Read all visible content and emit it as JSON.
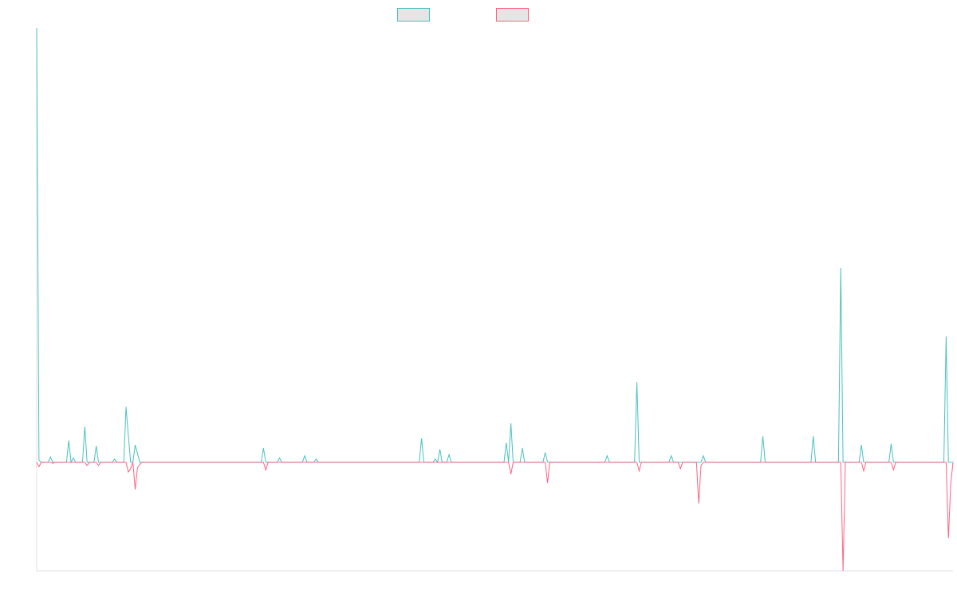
{
  "chart_data": {
    "type": "line",
    "title": "",
    "xlabel": "",
    "ylabel": "",
    "ylim": [
      -100,
      400
    ],
    "grid": false,
    "legend": "top-center",
    "x": [
      0,
      1,
      2,
      3,
      4,
      5,
      6,
      7,
      8,
      9,
      10,
      11,
      12,
      13,
      14,
      15,
      16,
      17,
      18,
      19,
      20,
      21,
      22,
      23,
      24,
      25,
      26,
      27,
      28,
      29,
      30,
      31,
      32,
      33,
      34,
      35,
      36,
      37,
      38,
      39,
      40,
      41,
      42,
      43,
      44,
      45,
      46,
      47,
      48,
      49,
      50,
      51,
      52,
      53,
      54,
      55,
      56,
      57,
      58,
      59,
      60,
      61,
      62,
      63,
      64,
      65,
      66,
      67,
      68,
      69,
      70,
      71,
      72,
      73,
      74,
      75,
      76,
      77,
      78,
      79,
      80,
      81,
      82,
      83,
      84,
      85,
      86,
      87,
      88,
      89,
      90,
      91,
      92,
      93,
      94,
      95,
      96,
      97,
      98,
      99,
      100,
      101,
      102,
      103,
      104,
      105,
      106,
      107,
      108,
      109,
      110,
      111,
      112,
      113,
      114,
      115,
      116,
      117,
      118,
      119,
      120,
      121,
      122,
      123,
      124,
      125,
      126,
      127,
      128,
      129,
      130,
      131,
      132,
      133,
      134,
      135,
      136,
      137,
      138,
      139,
      140,
      141,
      142,
      143,
      144,
      145,
      146,
      147,
      148,
      149,
      150,
      151,
      152,
      153,
      154,
      155,
      156,
      157,
      158,
      159,
      160,
      161,
      162,
      163,
      164,
      165,
      166,
      167,
      168,
      169,
      170,
      171,
      172,
      173,
      174,
      175,
      176,
      177,
      178,
      179,
      180,
      181,
      182,
      183,
      184,
      185,
      186,
      187,
      188,
      189,
      190,
      191,
      192,
      193,
      194,
      195,
      196,
      197,
      198,
      199,
      200,
      201,
      202,
      203,
      204,
      205,
      206,
      207,
      208,
      209,
      210,
      211,
      212,
      213,
      214,
      215,
      216,
      217,
      218,
      219,
      220,
      221,
      222,
      223,
      224,
      225,
      226,
      227,
      228,
      229,
      230,
      231,
      232,
      233,
      234,
      235,
      236,
      237,
      238,
      239,
      240,
      241,
      242,
      243,
      244,
      245,
      246,
      247,
      248,
      249,
      250,
      251,
      252,
      253,
      254,
      255,
      256,
      257,
      258,
      259,
      260,
      261,
      262,
      263,
      264,
      265,
      266,
      267,
      268,
      269,
      270,
      271,
      272,
      273,
      274,
      275,
      276,
      277,
      278,
      279,
      280,
      281,
      282,
      283,
      284,
      285,
      286,
      287,
      288,
      289,
      290,
      291,
      292,
      293,
      294,
      295,
      296,
      297,
      298,
      299,
      300,
      301,
      302,
      303,
      304,
      305,
      306,
      307,
      308,
      309,
      310,
      311,
      312,
      313,
      314,
      315,
      316,
      317,
      318,
      319,
      320,
      321,
      322,
      323,
      324,
      325,
      326,
      327,
      328,
      329,
      330,
      331,
      332,
      333,
      334,
      335,
      336,
      337,
      338,
      339,
      340,
      341,
      342,
      343,
      344,
      345,
      346,
      347,
      348,
      349,
      350,
      351,
      352,
      353,
      354,
      355,
      356,
      357,
      358,
      359,
      360,
      361,
      362,
      363,
      364,
      365,
      366,
      367,
      368,
      369,
      370,
      371,
      372,
      373,
      374,
      375,
      376,
      377,
      378,
      379,
      380,
      381,
      382,
      383,
      384,
      385,
      386,
      387,
      388,
      389,
      390,
      391,
      392,
      393,
      394,
      395,
      396,
      397,
      398,
      399,
      400
    ],
    "series": [
      {
        "name": "",
        "color": "#4bc0c0",
        "points": [
          [
            0,
            400
          ],
          [
            1,
            2
          ],
          [
            3,
            0
          ],
          [
            6,
            5
          ],
          [
            9,
            0
          ],
          [
            12,
            0
          ],
          [
            14,
            20
          ],
          [
            15,
            0
          ],
          [
            16,
            4
          ],
          [
            17,
            0
          ],
          [
            21,
            33
          ],
          [
            22,
            0
          ],
          [
            26,
            15
          ],
          [
            27,
            0
          ],
          [
            34,
            3
          ],
          [
            35,
            0
          ],
          [
            39,
            51
          ],
          [
            40,
            25
          ],
          [
            41,
            0
          ],
          [
            43,
            16
          ],
          [
            44,
            8
          ],
          [
            45,
            0
          ],
          [
            58,
            0
          ],
          [
            85,
            0
          ],
          [
            88,
            0
          ],
          [
            99,
            13
          ],
          [
            100,
            0
          ],
          [
            106,
            4
          ],
          [
            107,
            0
          ],
          [
            117,
            6
          ],
          [
            118,
            0
          ],
          [
            122,
            3
          ],
          [
            123,
            0
          ],
          [
            153,
            0
          ],
          [
            168,
            22
          ],
          [
            169,
            0
          ],
          [
            174,
            3
          ],
          [
            175,
            0
          ],
          [
            176,
            12
          ],
          [
            177,
            0
          ],
          [
            180,
            7
          ],
          [
            181,
            0
          ],
          [
            205,
            18
          ],
          [
            206,
            0
          ],
          [
            207,
            36
          ],
          [
            208,
            0
          ],
          [
            212,
            13
          ],
          [
            213,
            0
          ],
          [
            222,
            9
          ],
          [
            223,
            0
          ],
          [
            249,
            6
          ],
          [
            250,
            0
          ],
          [
            262,
            74
          ],
          [
            263,
            0
          ],
          [
            277,
            6
          ],
          [
            278,
            0
          ],
          [
            280,
            0
          ],
          [
            291,
            6
          ],
          [
            292,
            0
          ],
          [
            317,
            24
          ],
          [
            318,
            0
          ],
          [
            324,
            0
          ],
          [
            339,
            24
          ],
          [
            340,
            0
          ],
          [
            351,
            179
          ],
          [
            352,
            0
          ],
          [
            360,
            16
          ],
          [
            361,
            0
          ],
          [
            373,
            17
          ],
          [
            374,
            0
          ],
          [
            397,
            116
          ],
          [
            398,
            0
          ],
          [
            400,
            0
          ]
        ]
      },
      {
        "name": "",
        "color": "#ff6384",
        "points": [
          [
            0,
            0
          ],
          [
            1,
            -4
          ],
          [
            2,
            0
          ],
          [
            6,
            0
          ],
          [
            7,
            -1
          ],
          [
            8,
            0
          ],
          [
            21,
            0
          ],
          [
            22,
            -3
          ],
          [
            23,
            0
          ],
          [
            26,
            0
          ],
          [
            27,
            -3
          ],
          [
            28,
            0
          ],
          [
            39,
            0
          ],
          [
            40,
            -9
          ],
          [
            41,
            -6
          ],
          [
            43,
            -25
          ],
          [
            44,
            -5
          ],
          [
            45,
            -2
          ],
          [
            46,
            0
          ],
          [
            99,
            0
          ],
          [
            100,
            -7
          ],
          [
            101,
            0
          ],
          [
            206,
            0
          ],
          [
            207,
            -11
          ],
          [
            208,
            0
          ],
          [
            222,
            0
          ],
          [
            223,
            -19
          ],
          [
            224,
            0
          ],
          [
            262,
            0
          ],
          [
            263,
            -8
          ],
          [
            264,
            0
          ],
          [
            280,
            0
          ],
          [
            281,
            -6
          ],
          [
            282,
            0
          ],
          [
            288,
            0
          ],
          [
            289,
            -38
          ],
          [
            290,
            -3
          ],
          [
            291,
            0
          ],
          [
            351,
            0
          ],
          [
            352,
            -100
          ],
          [
            353,
            0
          ],
          [
            360,
            0
          ],
          [
            361,
            -8
          ],
          [
            362,
            0
          ],
          [
            373,
            0
          ],
          [
            374,
            -7
          ],
          [
            375,
            0
          ],
          [
            397,
            0
          ],
          [
            398,
            -70
          ],
          [
            399,
            -20
          ],
          [
            400,
            0
          ]
        ]
      }
    ],
    "legend_entries": [
      {
        "label": "",
        "border": "#4bc0c0",
        "fill": "#e5e5e5"
      },
      {
        "label": "",
        "border": "#ff6384",
        "fill": "#e5e5e5"
      }
    ]
  }
}
